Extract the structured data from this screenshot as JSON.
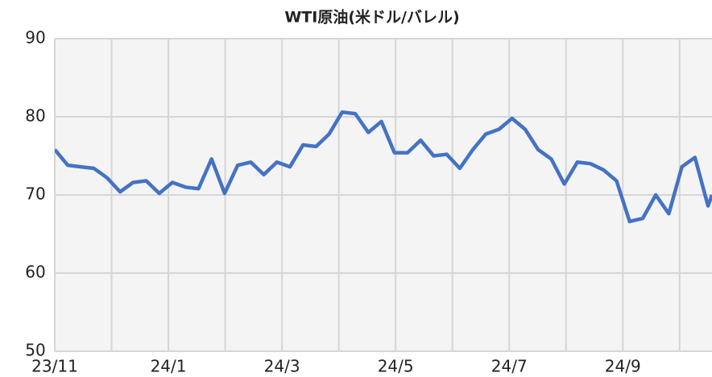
{
  "chart_data": {
    "type": "line",
    "title": "WTI原油(米ドル/バレル)",
    "x": [
      0,
      0.23,
      0.46,
      0.69,
      0.92,
      1.15,
      1.38,
      1.61,
      1.84,
      2.07,
      2.3,
      2.53,
      2.76,
      2.99,
      3.22,
      3.45,
      3.68,
      3.91,
      4.14,
      4.37,
      4.6,
      4.83,
      5.06,
      5.29,
      5.52,
      5.75,
      5.98,
      6.21,
      6.44,
      6.67,
      6.9,
      7.13,
      7.36,
      7.59,
      7.82,
      8.05,
      8.28,
      8.51,
      8.74,
      8.97,
      9.2,
      9.43,
      9.66,
      9.89,
      10.12,
      10.35,
      10.58,
      10.81,
      11.04,
      11.27,
      11.5,
      11.57
    ],
    "series": [
      {
        "name": "WTI原油",
        "color": "#4472c4",
        "values": [
          75.8,
          73.8,
          73.6,
          73.4,
          72.2,
          70.4,
          71.6,
          71.8,
          70.2,
          71.6,
          71.0,
          70.8,
          74.6,
          70.2,
          73.8,
          74.2,
          72.6,
          74.2,
          73.6,
          76.4,
          76.2,
          77.8,
          80.6,
          80.4,
          78.0,
          79.4,
          75.4,
          75.4,
          77.0,
          75.0,
          75.2,
          73.4,
          75.8,
          77.8,
          78.4,
          79.8,
          78.4,
          75.8,
          74.6,
          71.4,
          74.2,
          74.0,
          73.2,
          71.8,
          66.6,
          67.0,
          70.0,
          67.6,
          73.6,
          74.8,
          68.6,
          70.0
        ]
      }
    ],
    "xlim": [
      0,
      11.57
    ],
    "xticks": [
      {
        "value": 0,
        "label": "23/11"
      },
      {
        "value": 2,
        "label": "24/1"
      },
      {
        "value": 4,
        "label": "24/3"
      },
      {
        "value": 6,
        "label": "24/5"
      },
      {
        "value": 8,
        "label": "24/7"
      },
      {
        "value": 10,
        "label": "24/9"
      }
    ],
    "xminor": [
      1,
      3,
      5,
      7,
      9,
      11
    ],
    "ylim": [
      50,
      90
    ],
    "yticks": [
      50,
      60,
      70,
      80,
      90
    ],
    "grid": true
  }
}
